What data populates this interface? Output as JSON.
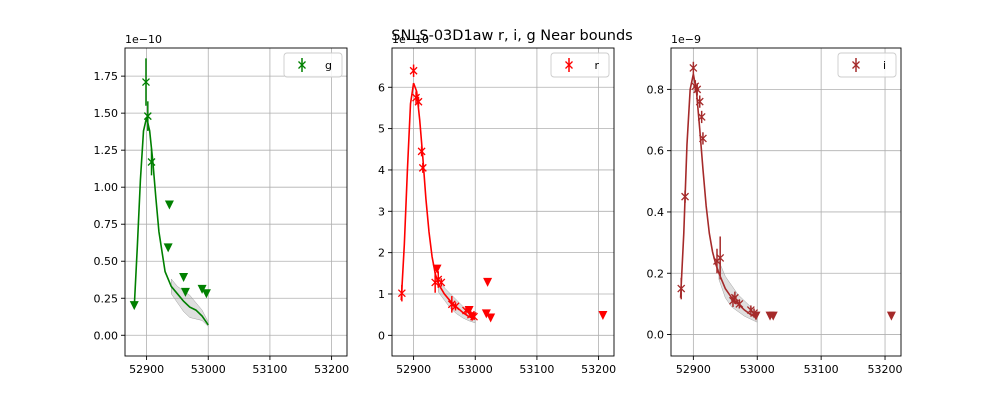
{
  "figure": {
    "title": "SNLS-03D1aw  r, i, g Near bounds"
  },
  "chart_data": [
    {
      "type": "scatter",
      "band": "g",
      "color": "#008000",
      "offset_label": "1e−10",
      "xlim": [
        52865,
        53225
      ],
      "ylim": [
        -0.14,
        1.94
      ],
      "xticks": [
        52900,
        53000,
        53100,
        53200
      ],
      "xtick_labels": [
        "52900",
        "53000",
        "53100",
        "53200"
      ],
      "yticks": [
        0.0,
        0.25,
        0.5,
        0.75,
        1.0,
        1.25,
        1.5,
        1.75
      ],
      "ytick_labels": [
        "0.00",
        "0.25",
        "0.50",
        "0.75",
        "1.00",
        "1.25",
        "1.50",
        "1.75"
      ],
      "legend": {
        "label": "g",
        "position": "top-right"
      },
      "grid": true,
      "detections": [
        {
          "x": 52899,
          "y": 1.71,
          "err": 0.16
        },
        {
          "x": 52902,
          "y": 1.48,
          "err": 0.1
        },
        {
          "x": 52908,
          "y": 1.17,
          "err": 0.09
        }
      ],
      "upper_limits": [
        {
          "x": 52880,
          "y": 0.2
        },
        {
          "x": 52935,
          "y": 0.59
        },
        {
          "x": 52937,
          "y": 0.88
        },
        {
          "x": 52960,
          "y": 0.39
        },
        {
          "x": 52963,
          "y": 0.29
        },
        {
          "x": 52990,
          "y": 0.31
        },
        {
          "x": 52997,
          "y": 0.28
        }
      ],
      "model": {
        "x": [
          52880,
          52885,
          52890,
          52895,
          52900,
          52905,
          52910,
          52915,
          52920,
          52930,
          52940,
          52950,
          52960,
          52970,
          52980,
          52990,
          53000
        ],
        "y": [
          0.19,
          0.6,
          1.05,
          1.38,
          1.47,
          1.38,
          1.18,
          0.93,
          0.7,
          0.43,
          0.33,
          0.28,
          0.23,
          0.19,
          0.17,
          0.13,
          0.07
        ],
        "band_x": [
          52940,
          52950,
          52960,
          52970,
          52980,
          52990,
          53000
        ],
        "band_lo": [
          0.28,
          0.22,
          0.16,
          0.12,
          0.11,
          0.1,
          0.06
        ],
        "band_hi": [
          0.38,
          0.33,
          0.3,
          0.27,
          0.22,
          0.17,
          0.09
        ]
      }
    },
    {
      "type": "scatter",
      "band": "r",
      "color": "#ff0000",
      "offset_label": "1e−10",
      "xlim": [
        52865,
        53225
      ],
      "ylim": [
        -0.5,
        6.95
      ],
      "xticks": [
        52900,
        53000,
        53100,
        53200
      ],
      "xtick_labels": [
        "52900",
        "53000",
        "53100",
        "53200"
      ],
      "yticks": [
        0,
        1,
        2,
        3,
        4,
        5,
        6
      ],
      "ytick_labels": [
        "0",
        "1",
        "2",
        "3",
        "4",
        "5",
        "6"
      ],
      "legend": {
        "label": "r",
        "position": "top-right"
      },
      "grid": true,
      "detections": [
        {
          "x": 52881,
          "y": 1.02,
          "err": 0.2
        },
        {
          "x": 52900,
          "y": 6.4,
          "err": 0.15
        },
        {
          "x": 52904,
          "y": 5.75,
          "err": 0.15
        },
        {
          "x": 52908,
          "y": 5.65,
          "err": 0.12
        },
        {
          "x": 52913,
          "y": 4.45,
          "err": 0.12
        },
        {
          "x": 52915,
          "y": 4.05,
          "err": 0.12
        },
        {
          "x": 52935,
          "y": 1.28,
          "err": 0.25
        },
        {
          "x": 52940,
          "y": 1.35,
          "err": 0.2
        },
        {
          "x": 52945,
          "y": 1.28,
          "err": 0.1
        },
        {
          "x": 52962,
          "y": 0.75,
          "err": 0.2
        },
        {
          "x": 52968,
          "y": 0.7,
          "err": 0.1
        },
        {
          "x": 52985,
          "y": 0.6,
          "err": 0.08
        },
        {
          "x": 52993,
          "y": 0.5,
          "err": 0.08
        },
        {
          "x": 52998,
          "y": 0.45,
          "err": 0.08
        }
      ],
      "upper_limits": [
        {
          "x": 52938,
          "y": 1.6
        },
        {
          "x": 52990,
          "y": 0.6
        },
        {
          "x": 52995,
          "y": 0.45
        },
        {
          "x": 53020,
          "y": 1.28
        },
        {
          "x": 53018,
          "y": 0.52
        },
        {
          "x": 53025,
          "y": 0.42
        },
        {
          "x": 53207,
          "y": 0.48
        }
      ],
      "model": {
        "x": [
          52880,
          52885,
          52890,
          52895,
          52900,
          52905,
          52910,
          52915,
          52920,
          52925,
          52930,
          52935,
          52940,
          52950,
          52960,
          52970,
          52980,
          52990,
          53000
        ],
        "y": [
          0.85,
          2.2,
          4.0,
          5.6,
          6.1,
          5.9,
          5.2,
          4.3,
          3.3,
          2.5,
          1.9,
          1.5,
          1.25,
          1.0,
          0.82,
          0.68,
          0.55,
          0.45,
          0.4
        ],
        "band_x": [
          52940,
          52950,
          52960,
          52970,
          52980,
          52990,
          53000
        ],
        "band_lo": [
          1.05,
          0.85,
          0.65,
          0.52,
          0.42,
          0.35,
          0.3
        ],
        "band_hi": [
          1.45,
          1.15,
          1.0,
          0.85,
          0.7,
          0.58,
          0.5
        ]
      }
    },
    {
      "type": "scatter",
      "band": "i",
      "color": "#a52a2a",
      "offset_label": "1e−9",
      "xlim": [
        52865,
        53225
      ],
      "ylim": [
        -0.07,
        0.935
      ],
      "xticks": [
        52900,
        53000,
        53100,
        53200
      ],
      "xtick_labels": [
        "52900",
        "53000",
        "53100",
        "53200"
      ],
      "yticks": [
        0.0,
        0.2,
        0.4,
        0.6,
        0.8
      ],
      "ytick_labels": [
        "0.0",
        "0.2",
        "0.4",
        "0.6",
        "0.8"
      ],
      "legend": {
        "label": "i",
        "position": "top-right"
      },
      "grid": true,
      "detections": [
        {
          "x": 52881,
          "y": 0.15,
          "err": 0.035
        },
        {
          "x": 52887,
          "y": 0.45,
          "err": 0.02
        },
        {
          "x": 52900,
          "y": 0.87,
          "err": 0.02
        },
        {
          "x": 52903,
          "y": 0.81,
          "err": 0.02
        },
        {
          "x": 52906,
          "y": 0.8,
          "err": 0.02
        },
        {
          "x": 52910,
          "y": 0.76,
          "err": 0.02
        },
        {
          "x": 52913,
          "y": 0.71,
          "err": 0.02
        },
        {
          "x": 52915,
          "y": 0.64,
          "err": 0.02
        },
        {
          "x": 52937,
          "y": 0.24,
          "err": 0.04
        },
        {
          "x": 52942,
          "y": 0.25,
          "err": 0.07
        },
        {
          "x": 52962,
          "y": 0.11,
          "err": 0.02
        },
        {
          "x": 52965,
          "y": 0.12,
          "err": 0.02
        },
        {
          "x": 52972,
          "y": 0.1,
          "err": 0.015
        },
        {
          "x": 52990,
          "y": 0.08,
          "err": 0.015
        },
        {
          "x": 52995,
          "y": 0.07,
          "err": 0.015
        }
      ],
      "upper_limits": [
        {
          "x": 52998,
          "y": 0.06
        },
        {
          "x": 53020,
          "y": 0.06
        },
        {
          "x": 53025,
          "y": 0.06
        },
        {
          "x": 53210,
          "y": 0.06
        }
      ],
      "model": {
        "x": [
          52880,
          52885,
          52890,
          52895,
          52900,
          52905,
          52910,
          52915,
          52920,
          52925,
          52930,
          52935,
          52940,
          52950,
          52960,
          52970,
          52980,
          52990,
          53000
        ],
        "y": [
          0.12,
          0.33,
          0.62,
          0.8,
          0.85,
          0.79,
          0.67,
          0.54,
          0.42,
          0.33,
          0.27,
          0.23,
          0.2,
          0.15,
          0.12,
          0.1,
          0.08,
          0.065,
          0.055
        ],
        "band_x": [
          52940,
          52950,
          52960,
          52970,
          52980,
          52990,
          53000
        ],
        "band_lo": [
          0.18,
          0.12,
          0.09,
          0.075,
          0.06,
          0.05,
          0.04
        ],
        "band_hi": [
          0.24,
          0.19,
          0.16,
          0.13,
          0.11,
          0.09,
          0.07
        ]
      }
    }
  ]
}
